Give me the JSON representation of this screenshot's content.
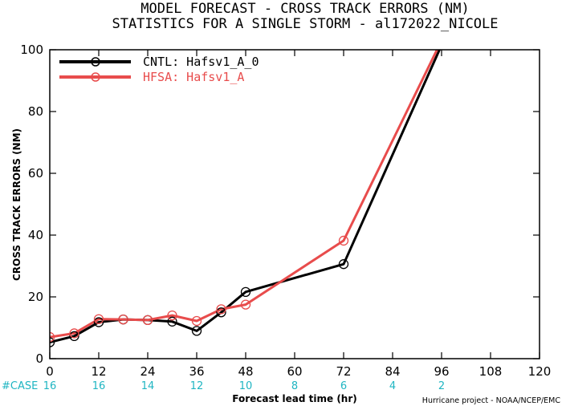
{
  "title_line1": "MODEL FORECAST - CROSS TRACK ERRORS (NM)",
  "title_line2": "STATISTICS FOR A SINGLE STORM - al172022_NICOLE",
  "case_label": "#CASE",
  "credit": "Hurricane project - NOAA/NCEP/EMC",
  "colors": {
    "cntl": "#000000",
    "hfsa": "#e84c4c",
    "case": "#1fb5c2"
  },
  "chart_data": {
    "type": "line",
    "title": "MODEL FORECAST - CROSS TRACK ERRORS (NM)",
    "subtitle": "STATISTICS FOR A SINGLE STORM - al172022_NICOLE",
    "xlabel": "Forecast lead time (hr)",
    "ylabel": "CROSS TRACK ERRORS (NM)",
    "xlim": [
      0,
      120
    ],
    "ylim": [
      0,
      100
    ],
    "xticks": [
      0,
      12,
      24,
      36,
      48,
      60,
      72,
      84,
      96,
      108,
      120
    ],
    "yticks": [
      0,
      20,
      40,
      60,
      80,
      100
    ],
    "legend_position": "top-left",
    "grid": false,
    "series": [
      {
        "name": "CNTL: Hafsv1_A_0",
        "color": "#000000",
        "x": [
          0,
          6,
          12,
          18,
          24,
          30,
          36,
          42,
          48,
          72,
          96
        ],
        "y": [
          5.3,
          7.3,
          11.8,
          12.7,
          12.5,
          12.0,
          9.0,
          15.0,
          21.6,
          30.6,
          101.5
        ]
      },
      {
        "name": "HFSA: Hafsv1_A",
        "color": "#e84c4c",
        "x": [
          0,
          6,
          12,
          18,
          24,
          30,
          36,
          42,
          48,
          72,
          96
        ],
        "y": [
          7.0,
          8.2,
          12.8,
          12.7,
          12.5,
          14.0,
          12.2,
          16.0,
          17.5,
          38.2,
          103.0
        ]
      }
    ],
    "case_counts": {
      "x": [
        0,
        12,
        24,
        36,
        48,
        60,
        72,
        84,
        96
      ],
      "values": [
        "16",
        "16",
        "14",
        "12",
        "10",
        "8",
        "6",
        "4",
        "2"
      ]
    }
  }
}
